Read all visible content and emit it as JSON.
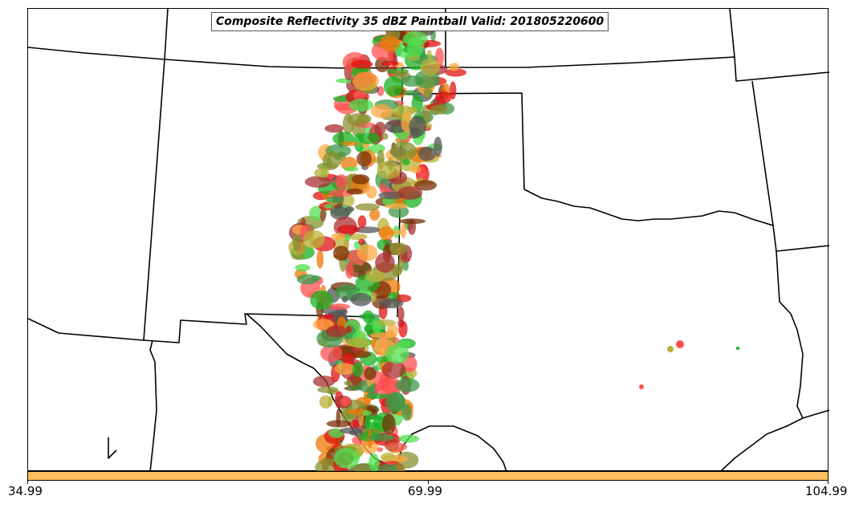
{
  "title": "Composite Reflectivity 35 dBZ Paintball Valid: 201805220600",
  "colorbar": {
    "color": "#fec060",
    "tick_labels": [
      "34.99",
      "69.99",
      "104.99"
    ]
  },
  "map": {
    "land_color": "#ffffff",
    "border_color": "#000000",
    "paintball_colors": [
      "#e01010",
      "#ff5050",
      "#ee7a08",
      "#ffa840",
      "#18b020",
      "#50e050",
      "#3e9848",
      "#8a9030",
      "#bab038",
      "#a83030",
      "#555555",
      "#7a3008"
    ]
  }
}
